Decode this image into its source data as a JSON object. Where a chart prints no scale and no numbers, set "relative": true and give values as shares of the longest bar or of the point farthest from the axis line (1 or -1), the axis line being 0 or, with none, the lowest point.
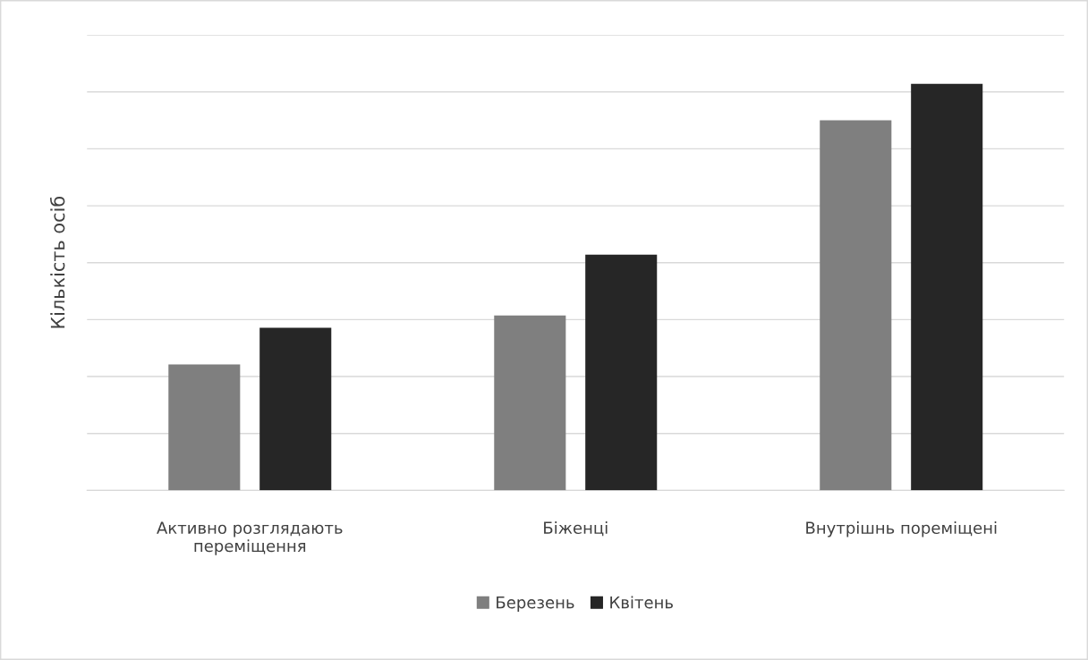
{
  "chart_data": {
    "type": "bar",
    "ylabel": "Кількість осіб",
    "relative": true,
    "grid": "y",
    "legend": "bottom",
    "categories": [
      "Активно розглядають\nпереміщення",
      "Біженці",
      "Внутрішнь пореміщені"
    ],
    "series": [
      {
        "name": "Березень",
        "color": "#7f7f7f",
        "values": [
          0.31,
          0.43,
          0.91
        ]
      },
      {
        "name": "Квітень",
        "color": "#262626",
        "values": [
          0.4,
          0.58,
          1.0
        ]
      }
    ]
  }
}
